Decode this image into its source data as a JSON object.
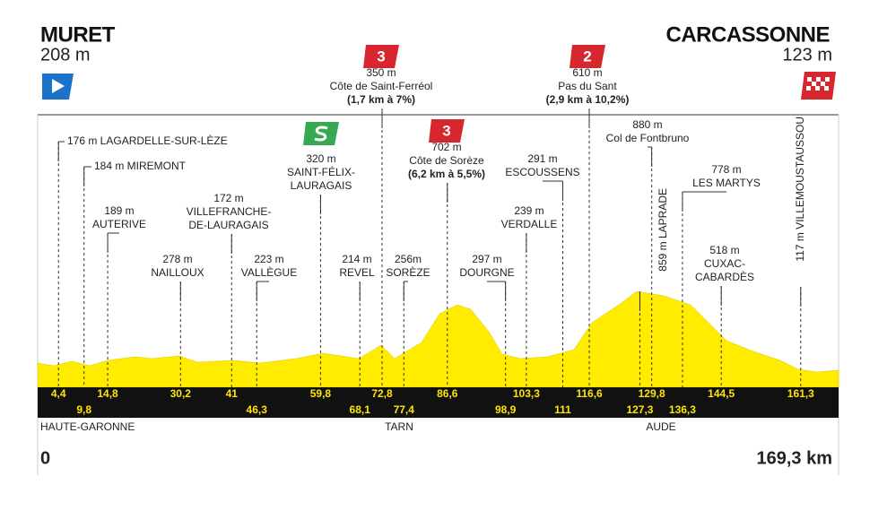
{
  "header": {
    "start": {
      "name": "MURET",
      "altitude": "208 m"
    },
    "finish": {
      "name": "CARCASSONNE",
      "altitude": "123 m"
    }
  },
  "profile": {
    "start_km": 0,
    "total_km": {
      "value": 169.3,
      "label": "169,3 km"
    },
    "regions": [
      "HAUTE-GARONNE",
      "TARN",
      "AUDE"
    ],
    "points": [
      {
        "km": {
          "value": 4.4,
          "label": "4,4"
        },
        "lines": [
          "176 m LAGARDELLE-SUR-LÈZE"
        ]
      },
      {
        "km": {
          "value": 9.8,
          "label": "9,8"
        },
        "lines": [
          "184 m MIREMONT"
        ]
      },
      {
        "km": {
          "value": 14.8,
          "label": "14,8"
        },
        "lines": [
          "189 m",
          "AUTERIVE"
        ]
      },
      {
        "km": {
          "value": 30.2,
          "label": "30,2"
        },
        "lines": [
          "278 m",
          "NAILLOUX"
        ]
      },
      {
        "km": 41,
        "lines": [
          "172 m",
          "VILLEFRANCHE-",
          "DE-LAURAGAIS"
        ]
      },
      {
        "km": {
          "value": 46.3,
          "label": "46,3"
        },
        "lines": [
          "223 m",
          "VALLÈGUE"
        ]
      },
      {
        "km": {
          "value": 59.8,
          "label": "59,8"
        },
        "lines": [
          "320 m",
          "SAINT-FÉLIX-",
          "LAURAGAIS"
        ],
        "marker": "sprint"
      },
      {
        "km": {
          "value": 68.1,
          "label": "68,1"
        },
        "lines": [
          "214 m",
          "REVEL"
        ]
      },
      {
        "km": {
          "value": 72.8,
          "label": "72,8"
        },
        "lines": [
          "350 m",
          "Côte de Saint-Ferréol",
          "(1,7 km à 7%)"
        ],
        "climb": "3"
      },
      {
        "km": {
          "value": 77.4,
          "label": "77,4"
        },
        "lines": [
          "256m",
          "SORÈZE"
        ]
      },
      {
        "km": {
          "value": 86.6,
          "label": "86,6"
        },
        "lines": [
          "702 m",
          "Côte de Sorèze",
          "(6,2 km à 5,5%)"
        ],
        "climb": "3"
      },
      {
        "km": {
          "value": 98.9,
          "label": "98,9"
        },
        "lines": [
          "297 m",
          "DOURGNE"
        ]
      },
      {
        "km": {
          "value": 103.3,
          "label": "103,3"
        },
        "lines": [
          "239 m",
          "VERDALLE"
        ]
      },
      {
        "km": 111,
        "lines": [
          "291 m",
          "ESCOUSSENS"
        ]
      },
      {
        "km": {
          "value": 116.6,
          "label": "116,6"
        },
        "lines": [
          "610 m",
          "Pas du Sant",
          "(2,9 km à 10,2%)"
        ],
        "climb": "2"
      },
      {
        "km": {
          "value": 127.3,
          "label": "127,3"
        },
        "lines": [
          "859 m LAPRADE"
        ]
      },
      {
        "km": {
          "value": 129.8,
          "label": "129,8"
        },
        "lines": [
          "880 m",
          "Col de Fontbruno"
        ]
      },
      {
        "km": {
          "value": 136.3,
          "label": "136,3"
        },
        "lines": [
          "778 m",
          "LES MARTYS"
        ]
      },
      {
        "km": {
          "value": 144.5,
          "label": "144,5"
        },
        "lines": [
          "518 m",
          "CUXAC-",
          "CABARDÈS"
        ]
      },
      {
        "km": {
          "value": 161.3,
          "label": "161,3"
        },
        "lines": [
          "117 m VILLEMOUSTAUSSOU"
        ]
      }
    ]
  }
}
